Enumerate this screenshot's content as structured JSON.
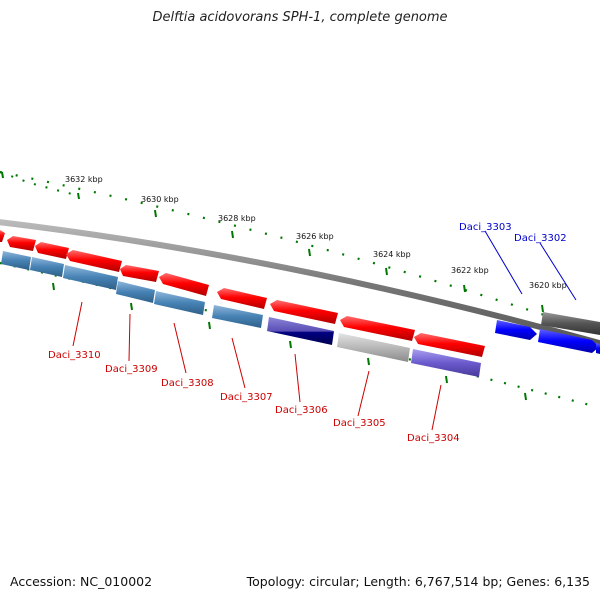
{
  "title": "Delftia acidovorans SPH-1, complete genome",
  "footer": {
    "accession": "Accession: NC_010002",
    "topology": "Topology: circular; Length: 6,767,514 bp; Genes: 6,135"
  },
  "ticks": [
    "3632 kbp",
    "3630 kbp",
    "3628 kbp",
    "3626 kbp",
    "3624 kbp",
    "3622 kbp",
    "3620 kbp"
  ],
  "gene_labels_reverse": [
    "Daci_3310",
    "Daci_3309",
    "Daci_3308",
    "Daci_3307",
    "Daci_3306",
    "Daci_3305",
    "Daci_3304"
  ],
  "gene_labels_forward": [
    "Daci_3303",
    "Daci_3302"
  ],
  "colors": {
    "cds_red": "#ff0000",
    "cds_steelblue": "#4682b4",
    "cds_blue": "#0000ff",
    "cds_purple": "#6a5acd",
    "cds_navy": "#000080",
    "cds_gray": "#b0b0b0",
    "cds_darkgray": "#555555",
    "backbone": "#777777",
    "tick_green": "#007700",
    "label_red": "#cc0000",
    "label_blue": "#0000cc"
  }
}
